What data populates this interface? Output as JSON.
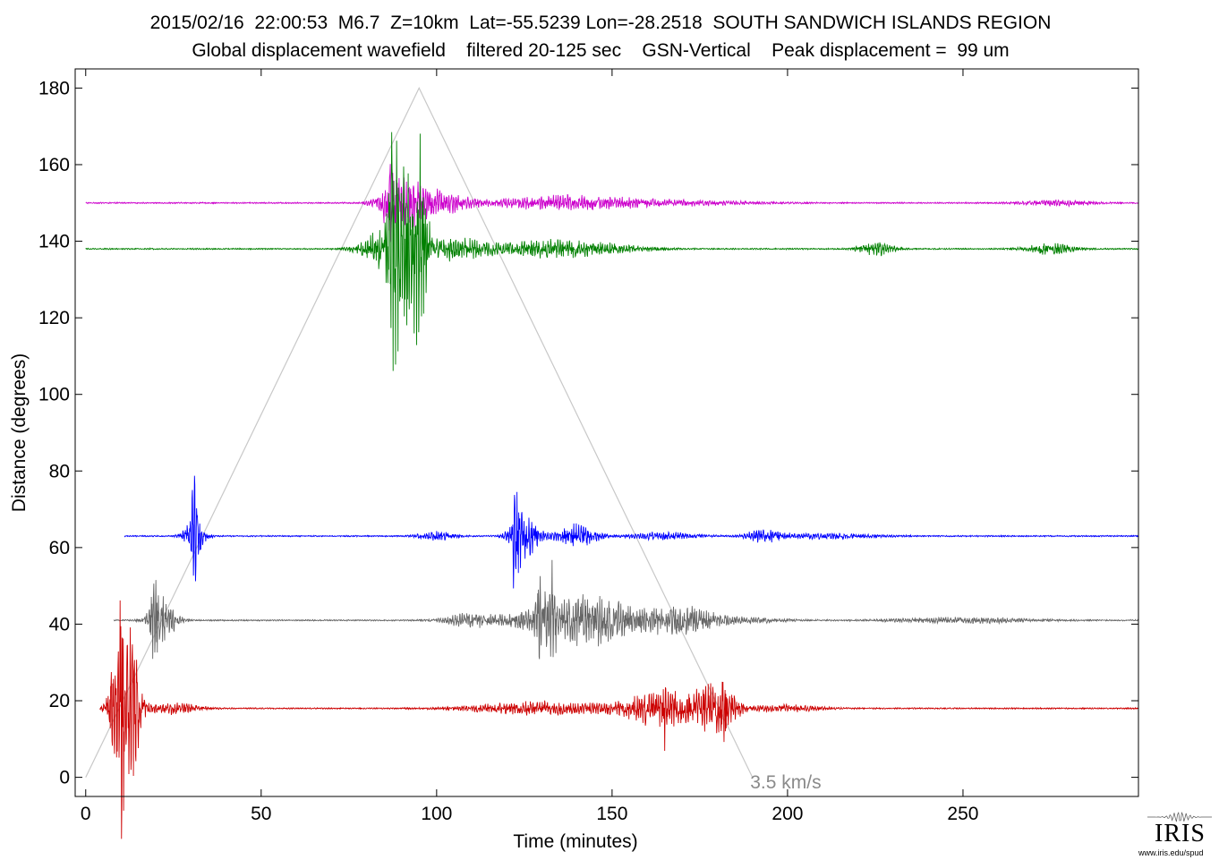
{
  "header": {
    "title_line1": "2015/02/16  22:00:53  M6.7  Z=10km  Lat=-55.5239 Lon=-28.2518  SOUTH SANDWICH ISLANDS REGION",
    "title_line2": "Global displacement wavefield    filtered 20-125 sec    GSN-Vertical    Peak displacement =  99 um"
  },
  "logo": {
    "text": "IRIS",
    "url": "www.iris.edu/spud"
  },
  "chart_data": {
    "type": "line",
    "title": "2015/02/16  22:00:53  M6.7  Z=10km  Lat=-55.5239 Lon=-28.2518  SOUTH SANDWICH ISLANDS REGION",
    "subtitle": "Global displacement wavefield    filtered 20-125 sec    GSN-Vertical    Peak displacement =  99 um",
    "xlabel": "Time (minutes)",
    "ylabel": "Distance (degrees)",
    "xlim": [
      -3,
      300
    ],
    "ylim": [
      -5,
      185
    ],
    "xticks": [
      0,
      50,
      100,
      150,
      200,
      250
    ],
    "yticks": [
      0,
      20,
      40,
      60,
      80,
      100,
      120,
      140,
      160,
      180
    ],
    "grid": false,
    "reference_line": {
      "label": "3.5 km/s",
      "points": [
        [
          0,
          0
        ],
        [
          95,
          180
        ],
        [
          190,
          0
        ]
      ],
      "color": "#c8c8c8",
      "label_color": "#8a8a8a"
    },
    "series": [
      {
        "distance": 150,
        "color": "#cc00cc",
        "start": 0,
        "end": 300,
        "bursts": [
          [
            90,
            6,
            5
          ],
          [
            100,
            9,
            2.5
          ],
          [
            135,
            20,
            1.5
          ],
          [
            165,
            25,
            0.6
          ],
          [
            277,
            10,
            0.6
          ]
        ],
        "spikes": [
          [
            87,
            13,
            7
          ]
        ]
      },
      {
        "distance": 138,
        "color": "#008000",
        "start": 0,
        "end": 300,
        "bursts": [
          [
            88,
            8,
            6
          ],
          [
            105,
            10,
            2.5
          ],
          [
            128,
            12,
            1.5
          ],
          [
            145,
            15,
            1.2
          ],
          [
            225,
            5,
            1.5
          ],
          [
            275,
            7,
            1.2
          ]
        ],
        "spikes": [
          [
            88,
            14,
            24
          ],
          [
            92,
            14,
            22
          ],
          [
            95,
            17,
            20
          ]
        ]
      },
      {
        "distance": 63,
        "color": "#0000ff",
        "start": 11,
        "end": 300,
        "bursts": [
          [
            31,
            3,
            4
          ],
          [
            100,
            5,
            1
          ],
          [
            125,
            4,
            5
          ],
          [
            140,
            6,
            2.5
          ],
          [
            165,
            10,
            0.8
          ],
          [
            193,
            5,
            1.2
          ],
          [
            210,
            15,
            0.6
          ]
        ],
        "spikes": [
          [
            31,
            8,
            9
          ],
          [
            122,
            4,
            8
          ],
          [
            123,
            7,
            6
          ]
        ]
      },
      {
        "distance": 41,
        "color": "#666666",
        "start": 8,
        "end": 300,
        "bursts": [
          [
            22,
            4,
            4
          ],
          [
            110,
            8,
            1.5
          ],
          [
            130,
            10,
            2
          ],
          [
            145,
            14,
            5
          ],
          [
            170,
            10,
            3
          ],
          [
            190,
            10,
            0.6
          ],
          [
            250,
            20,
            0.6
          ]
        ],
        "spikes": [
          [
            20,
            12,
            10
          ],
          [
            130,
            11,
            6
          ],
          [
            133,
            9,
            7
          ]
        ]
      },
      {
        "distance": 18,
        "color": "#cc0000",
        "start": 4,
        "end": 300,
        "bursts": [
          [
            12,
            3,
            7
          ],
          [
            25,
            8,
            1.2
          ],
          [
            130,
            20,
            1.5
          ],
          [
            165,
            12,
            4
          ],
          [
            180,
            6,
            4.5
          ],
          [
            200,
            10,
            0.7
          ]
        ],
        "spikes": [
          [
            10,
            24,
            18
          ],
          [
            13,
            22,
            14
          ],
          [
            165,
            7,
            6
          ],
          [
            182,
            6,
            6
          ]
        ]
      }
    ]
  }
}
